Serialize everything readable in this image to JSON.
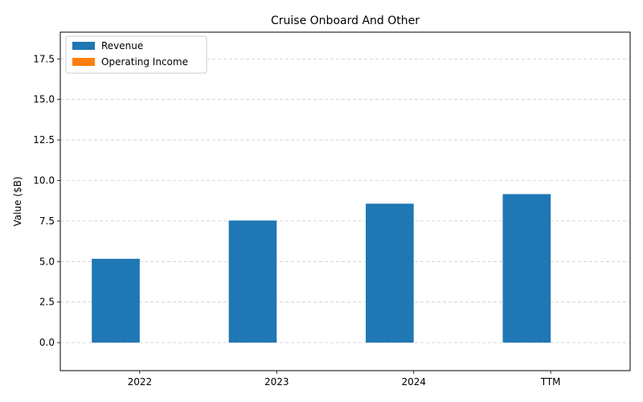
{
  "chart_data": {
    "type": "bar",
    "title": "Cruise Onboard And Other",
    "xlabel": "",
    "ylabel": "Value ($B)",
    "categories": [
      "2022",
      "2023",
      "2024",
      "TTM"
    ],
    "series": [
      {
        "name": "Revenue",
        "values": [
          5.17,
          7.53,
          8.57,
          9.16
        ],
        "color": "#1f77b4"
      },
      {
        "name": "Operating Income",
        "values": [
          0,
          0,
          0,
          0
        ],
        "color": "#ff7f0e"
      }
    ],
    "ylim": [
      -1.73,
      19.15
    ],
    "yticks": [
      0.0,
      2.5,
      5.0,
      7.5,
      10.0,
      12.5,
      15.0,
      17.5
    ],
    "ytick_labels": [
      "0.0",
      "2.5",
      "5.0",
      "7.5",
      "10.0",
      "12.5",
      "15.0",
      "17.5"
    ],
    "grid": "y-dashed",
    "legend": "top-left"
  }
}
